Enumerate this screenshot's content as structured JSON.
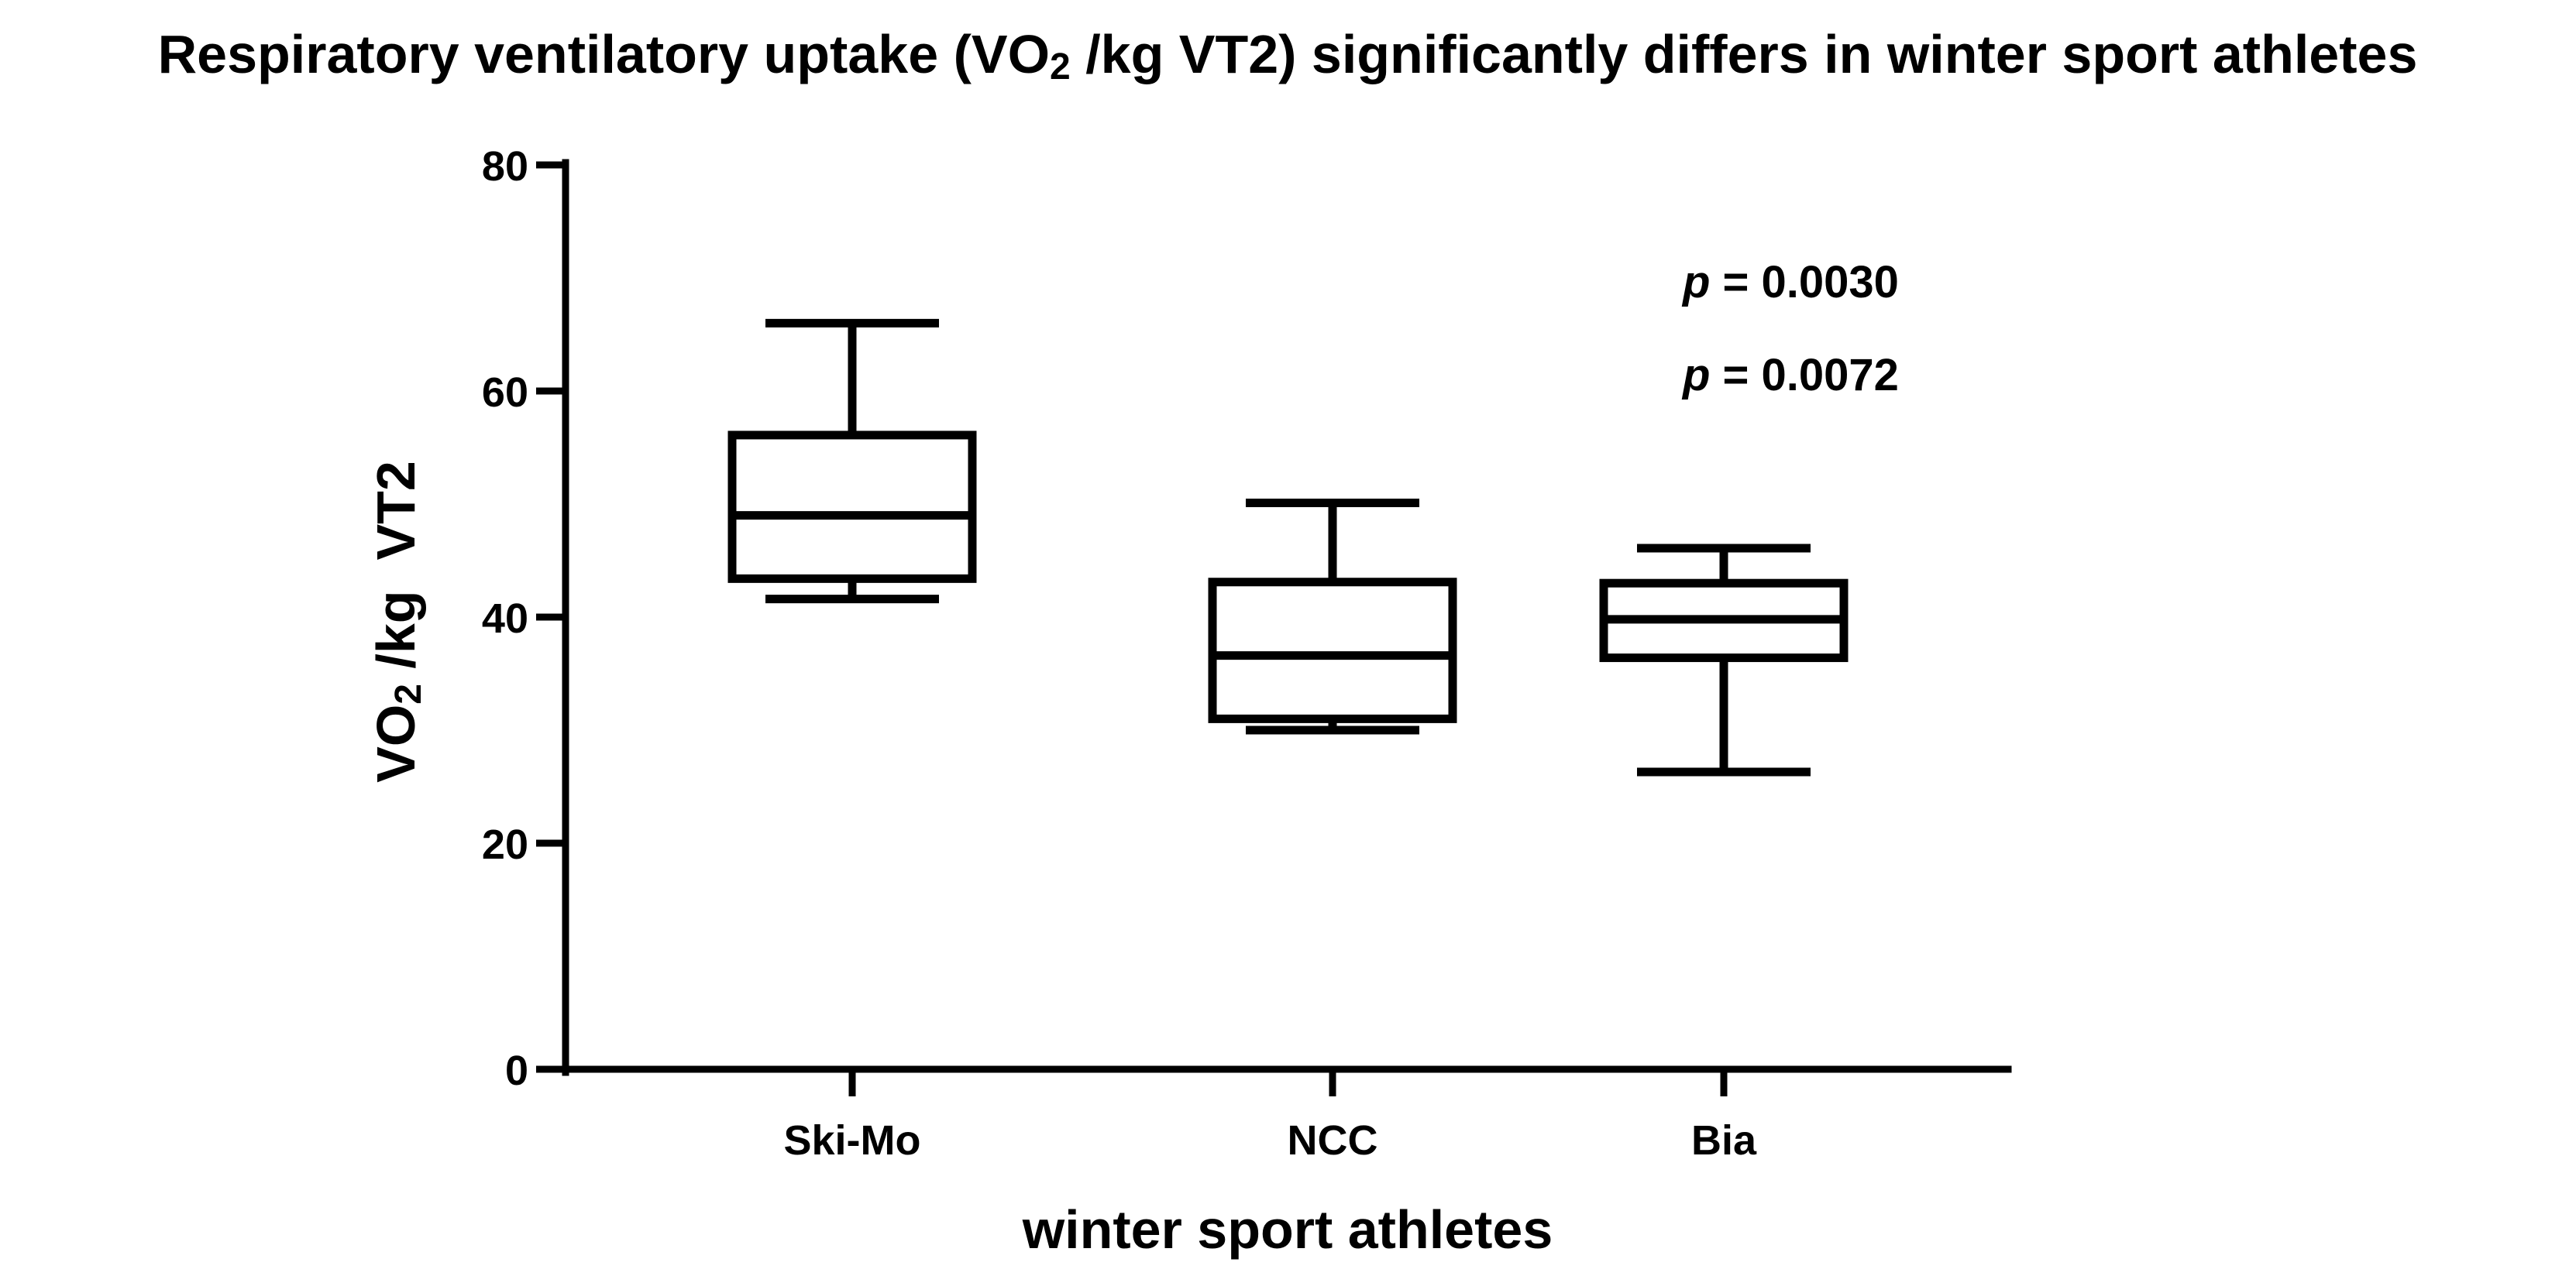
{
  "chart_data": {
    "type": "boxplot",
    "title": {
      "before": "Respiratory ventilatory uptake (VO",
      "sub": "2",
      "after": " /kg VT2) significantly differs in winter sport athletes"
    },
    "xlabel": "winter sport athletes",
    "ylabel": {
      "before": "VO",
      "sub": "2",
      "after": " /kg  VT2"
    },
    "ylim": [
      0,
      80
    ],
    "yticks": [
      0,
      20,
      40,
      60,
      80
    ],
    "categories": [
      "Ski-Mo",
      "NCC",
      "Bia"
    ],
    "boxes": [
      {
        "name": "Ski-Mo",
        "min": 41.6,
        "q1": 43.4,
        "median": 49.0,
        "q3": 56.1,
        "max": 66.0
      },
      {
        "name": "NCC",
        "min": 30.0,
        "q1": 31.0,
        "median": 36.6,
        "q3": 43.1,
        "max": 50.1
      },
      {
        "name": "Bia",
        "min": 26.3,
        "q1": 36.4,
        "median": 39.8,
        "q3": 43.0,
        "max": 46.1
      }
    ],
    "annotations": [
      {
        "prefix": "p",
        "text": " = 0.0030"
      },
      {
        "prefix": "p",
        "text": " = 0.0072"
      }
    ],
    "grid": false,
    "legend": "none"
  },
  "colors": {
    "stroke": "#000000",
    "background": "#ffffff"
  }
}
